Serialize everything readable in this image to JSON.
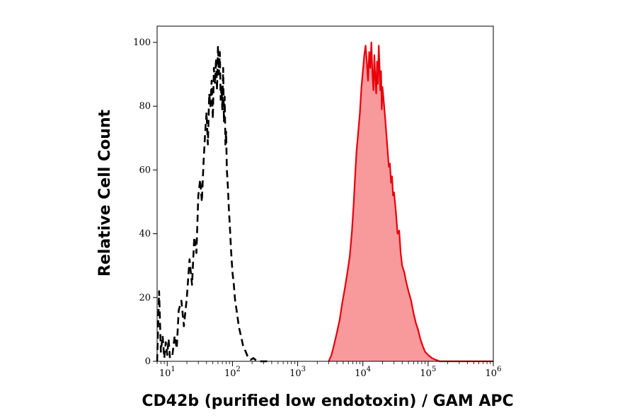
{
  "chart_data": {
    "type": "area",
    "title": "",
    "xlabel": "CD42b (purified low endotoxin) / GAM APC",
    "ylabel": "Relative Cell Count",
    "xscale": "log",
    "xlim": [
      7,
      1000000
    ],
    "ylim": [
      0,
      100
    ],
    "grid": false,
    "yticks": [
      0,
      20,
      40,
      60,
      80,
      100
    ],
    "xticks": [
      {
        "value": 10,
        "base": "10",
        "exp": "1"
      },
      {
        "value": 100,
        "base": "10",
        "exp": "2"
      },
      {
        "value": 1000,
        "base": "10",
        "exp": "3"
      },
      {
        "value": 10000,
        "base": "10",
        "exp": "4"
      },
      {
        "value": 100000,
        "base": "10",
        "exp": "5"
      },
      {
        "value": 1000000,
        "base": "10",
        "exp": "6"
      }
    ],
    "series": [
      {
        "style": "dashed",
        "color": "#000000",
        "fill": "none",
        "x": [
          7,
          7.5,
          8,
          8.5,
          9,
          9.5,
          10,
          10.5,
          11,
          12,
          13,
          14,
          15,
          16.5,
          18,
          20,
          22,
          24,
          26,
          28,
          30,
          32,
          34,
          36,
          38,
          40,
          42,
          44,
          46,
          48,
          50,
          52,
          54,
          56,
          58,
          60,
          62,
          64,
          66,
          68,
          70,
          72,
          74,
          76,
          78,
          80,
          82,
          85,
          88,
          91,
          95,
          100,
          105,
          110,
          118,
          125,
          135,
          145,
          160,
          175,
          190,
          210,
          230,
          260,
          300,
          400
        ],
        "y": [
          0,
          22,
          3,
          8,
          1,
          6,
          2,
          7,
          1,
          2,
          8,
          4,
          16,
          19,
          11,
          20,
          32,
          24,
          39,
          34,
          52,
          57,
          50,
          62,
          71,
          78,
          68,
          84,
          80,
          88,
          76,
          92,
          87,
          95,
          85,
          99,
          90,
          97,
          82,
          86,
          79,
          92,
          75,
          83,
          68,
          72,
          60,
          55,
          48,
          43,
          35,
          28,
          24,
          19,
          15,
          11,
          8,
          5,
          3,
          1,
          0.5,
          1,
          0.3,
          0,
          0,
          0
        ]
      },
      {
        "style": "filled",
        "color": "#e8000a",
        "fill": "#f8999c",
        "x": [
          3000,
          3300,
          3600,
          4000,
          4400,
          4800,
          5300,
          5800,
          6300,
          6800,
          7200,
          7600,
          8000,
          8500,
          9000,
          9500,
          10000,
          10500,
          11000,
          11500,
          12000,
          12500,
          13000,
          13500,
          14000,
          14500,
          15000,
          15500,
          16000,
          16500,
          17000,
          17500,
          18000,
          18500,
          19000,
          19500,
          20000,
          21000,
          22000,
          23000,
          24000,
          25000,
          26000,
          27000,
          28000,
          29000,
          30000,
          32000,
          34000,
          36000,
          38000,
          40000,
          43000,
          46000,
          50000,
          55000,
          60000,
          65000,
          70000,
          76000,
          82000,
          90000,
          100000,
          115000,
          130000,
          150000,
          200000,
          400000,
          1000000
        ],
        "y": [
          0,
          2,
          5,
          9,
          13,
          18,
          23,
          28,
          33,
          41,
          49,
          58,
          66,
          72,
          78,
          86,
          91,
          96,
          99,
          94,
          88,
          97,
          92,
          100,
          90,
          85,
          96,
          89,
          84,
          94,
          87,
          99,
          93,
          85,
          91,
          79,
          86,
          81,
          76,
          71,
          66,
          61,
          62,
          56,
          58,
          52,
          53,
          47,
          40,
          41,
          34,
          30,
          28,
          25,
          22,
          19,
          15,
          12,
          10,
          7,
          5,
          3,
          2,
          1,
          0.5,
          0,
          0,
          0,
          0
        ]
      }
    ]
  }
}
